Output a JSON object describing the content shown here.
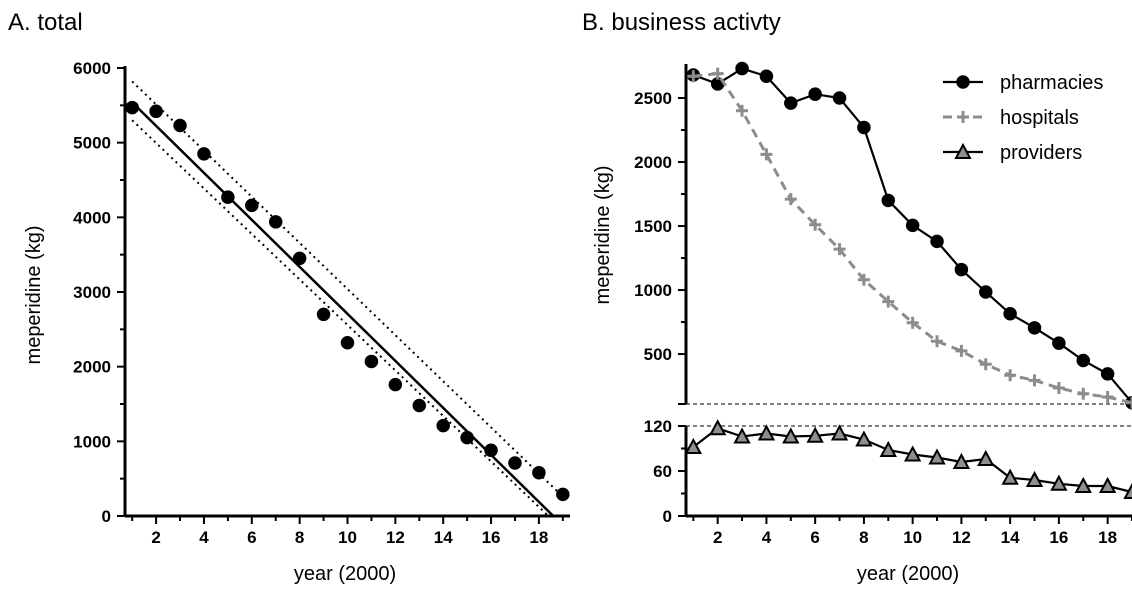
{
  "colors": {
    "black": "#000000",
    "gray": "#8c8c8c",
    "marker_fill_gray": "#8f8f8f"
  },
  "chart_data": [
    {
      "id": "A",
      "type": "scatter",
      "title": "A. total",
      "xlabel": "year (2000)",
      "ylabel": "meperidine (kg)",
      "xlim": [
        0.7,
        19.3
      ],
      "ylim": [
        0,
        6000
      ],
      "xticks": [
        2,
        4,
        6,
        8,
        10,
        12,
        14,
        16,
        18
      ],
      "yticks": [
        0,
        1000,
        2000,
        3000,
        4000,
        5000,
        6000
      ],
      "series": [
        {
          "marker": "circle",
          "x": [
            1,
            2,
            3,
            4,
            5,
            6,
            7,
            8,
            9,
            10,
            11,
            12,
            13,
            14,
            15,
            16,
            17,
            18,
            19
          ],
          "values": [
            5470,
            5420,
            5230,
            4850,
            4270,
            4160,
            3940,
            3450,
            2700,
            2320,
            2070,
            1760,
            1480,
            1210,
            1050,
            880,
            710,
            580,
            290
          ]
        }
      ],
      "fit_line": {
        "x": [
          1,
          18.6
        ],
        "y": [
          5540,
          0
        ]
      },
      "confidence_band": {
        "upper": {
          "x": [
            1,
            19
          ],
          "y": [
            5820,
            260
          ]
        },
        "lower": {
          "x": [
            1,
            18.4
          ],
          "y": [
            5300,
            0
          ]
        }
      },
      "grid": false
    },
    {
      "id": "B",
      "type": "line",
      "title": "B. business activty",
      "xlabel": "year (2000)",
      "ylabel": "meperidine (kg)",
      "xlim": [
        0.7,
        19
      ],
      "xticks": [
        2,
        4,
        6,
        8,
        10,
        12,
        14,
        16,
        18
      ],
      "upper_axis": {
        "ylim": [
          110,
          2750
        ],
        "yticks": [
          500,
          1000,
          1500,
          2000,
          2500
        ]
      },
      "lower_axis": {
        "ylim": [
          0,
          120
        ],
        "yticks": [
          0,
          60,
          120
        ]
      },
      "legend_position": "top-right",
      "series": [
        {
          "name": "pharmacies",
          "axis": "upper",
          "style": "solid",
          "marker": "circle",
          "x": [
            1,
            2,
            3,
            4,
            5,
            6,
            7,
            8,
            9,
            10,
            11,
            12,
            13,
            14,
            15,
            16,
            17,
            18,
            19
          ],
          "values": [
            2680,
            2610,
            2730,
            2670,
            2460,
            2530,
            2500,
            2270,
            1700,
            1505,
            1380,
            1160,
            985,
            815,
            705,
            585,
            450,
            345,
            120
          ]
        },
        {
          "name": "hospitals",
          "axis": "upper",
          "style": "dashed",
          "marker": "plus",
          "x": [
            1,
            2,
            3,
            4,
            5,
            6,
            7,
            8,
            9,
            10,
            11,
            12,
            13,
            14,
            15,
            16,
            17,
            18,
            19
          ],
          "values": [
            2670,
            2690,
            2400,
            2060,
            1710,
            1510,
            1320,
            1080,
            910,
            745,
            600,
            525,
            420,
            335,
            295,
            235,
            190,
            165,
            120
          ]
        },
        {
          "name": "providers",
          "axis": "lower",
          "style": "solid",
          "marker": "triangle",
          "x": [
            1,
            2,
            3,
            4,
            5,
            6,
            7,
            8,
            9,
            10,
            11,
            12,
            13,
            14,
            15,
            16,
            17,
            18,
            19
          ],
          "values": [
            92,
            117,
            106,
            110,
            106,
            107,
            110,
            102,
            88,
            82,
            78,
            72,
            76,
            51,
            48,
            43,
            40,
            40,
            32
          ]
        }
      ],
      "grid": false
    }
  ]
}
